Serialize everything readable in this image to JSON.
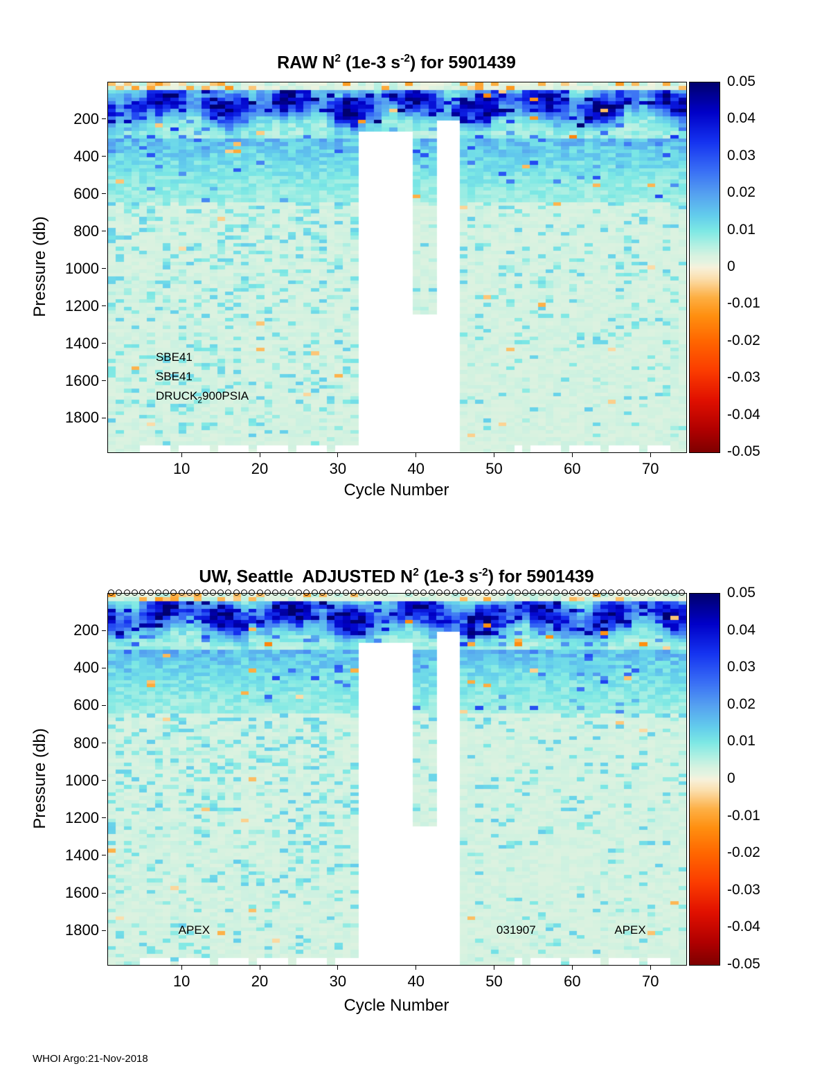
{
  "page": {
    "footer": "WHOI Argo:21-Nov-2018"
  },
  "labels": {
    "x": "Cycle Number",
    "y": "Pressure (db)"
  },
  "panel1": {
    "title": {
      "t1": "RAW N",
      "sup1": "2",
      "t2": " (1e-3 s",
      "sup2": "-2",
      "t3": ") for 5901439"
    },
    "ann1": "SBE41",
    "ann2": "SBE41",
    "ann3a": "DRUCK",
    "ann3sub": "2",
    "ann3b": "900PSIA"
  },
  "panel2": {
    "title": {
      "t1": "UW, Seattle  ADJUSTED N",
      "sup1": "2",
      "t2": " (1e-3 s",
      "sup2": "-2",
      "t3": ") for 5901439"
    },
    "ann1": "APEX",
    "ann2": "031907",
    "ann3": "APEX"
  },
  "chart_data": {
    "type": "heatmap",
    "panels": [
      {
        "title": "RAW N^2 (1e-3 s^-2) for 5901439",
        "annotations": [
          "SBE41",
          "SBE41",
          "DRUCK_2 900PSIA"
        ]
      },
      {
        "title": "UW, Seattle ADJUSTED N^2 (1e-3 s^-2) for 5901439",
        "annotations": [
          "APEX",
          "031907",
          "APEX"
        ]
      }
    ],
    "xlabel": "Cycle Number",
    "ylabel": "Pressure (db)",
    "x_range": [
      0.5,
      74.5
    ],
    "y_range": [
      0,
      1980
    ],
    "x_ticks": [
      10,
      20,
      30,
      40,
      50,
      60,
      70
    ],
    "y_ticks": [
      200,
      400,
      600,
      800,
      1000,
      1200,
      1400,
      1600,
      1800
    ],
    "value_range": [
      -0.05,
      0.05
    ],
    "colorbar_ticks": [
      {
        "v": 0.05,
        "label": "0.05"
      },
      {
        "v": 0.04,
        "label": "0.04"
      },
      {
        "v": 0.03,
        "label": "0.03"
      },
      {
        "v": 0.02,
        "label": "0.02"
      },
      {
        "v": 0.01,
        "label": "0.01"
      },
      {
        "v": 0,
        "label": "0"
      },
      {
        "v": -0.01,
        "label": "-0.01"
      },
      {
        "v": -0.02,
        "label": "-0.02"
      },
      {
        "v": -0.03,
        "label": "-0.03"
      },
      {
        "v": -0.04,
        "label": "-0.04"
      },
      {
        "v": -0.05,
        "label": "-0.05"
      }
    ],
    "colormap_stops": [
      {
        "v": 0.05,
        "color": "#00006e"
      },
      {
        "v": 0.042,
        "color": "#0000c8"
      },
      {
        "v": 0.034,
        "color": "#1533f0"
      },
      {
        "v": 0.026,
        "color": "#3a70f5"
      },
      {
        "v": 0.02,
        "color": "#55a0f0"
      },
      {
        "v": 0.014,
        "color": "#63cdec"
      },
      {
        "v": 0.01,
        "color": "#7ce8e4"
      },
      {
        "v": 0.006,
        "color": "#b2f0e2"
      },
      {
        "v": 0.003,
        "color": "#d9f2e0"
      },
      {
        "v": 0.0015,
        "color": "#e3f3e1"
      },
      {
        "v": 0,
        "color": "#f7f2dc"
      },
      {
        "v": -0.003,
        "color": "#fbdfae"
      },
      {
        "v": -0.008,
        "color": "#fdb045"
      },
      {
        "v": -0.013,
        "color": "#ff9010"
      },
      {
        "v": -0.02,
        "color": "#ff6600"
      },
      {
        "v": -0.028,
        "color": "#fb3c00"
      },
      {
        "v": -0.036,
        "color": "#e01000"
      },
      {
        "v": -0.044,
        "color": "#b00000"
      },
      {
        "v": -0.05,
        "color": "#7f0000"
      }
    ],
    "grid": {
      "n_cycles": 74,
      "pressure_bin_db": 20,
      "n_bins": 99
    },
    "missing_regions": [
      {
        "cycles": [
          33,
          39
        ],
        "below_db": 258
      },
      {
        "cycles": [
          40,
          42
        ],
        "below_db": 1245
      },
      {
        "cycles": [
          43,
          45
        ],
        "below_db": 190
      }
    ],
    "bottom_gap_row": {
      "below_db": 1945,
      "cycle_ranges": [
        [
          4,
          32
        ],
        [
          53,
          72
        ]
      ],
      "dash_period": 5,
      "dash_gap_at": 4
    },
    "surface_band": {
      "depth_center_db": 115,
      "depth_wiggle_db": 38,
      "band_sigma_db": 58,
      "amp_min": 0.012,
      "amp_max": 0.05
    },
    "deep_background_value": 0.003,
    "seeds": {
      "top": 20181121,
      "bottom": 5901439
    },
    "marker_row": {
      "panel": "bottom",
      "symbol": "o",
      "at_pressure_db": 0,
      "missing_cycles": [
        37,
        38
      ]
    }
  }
}
